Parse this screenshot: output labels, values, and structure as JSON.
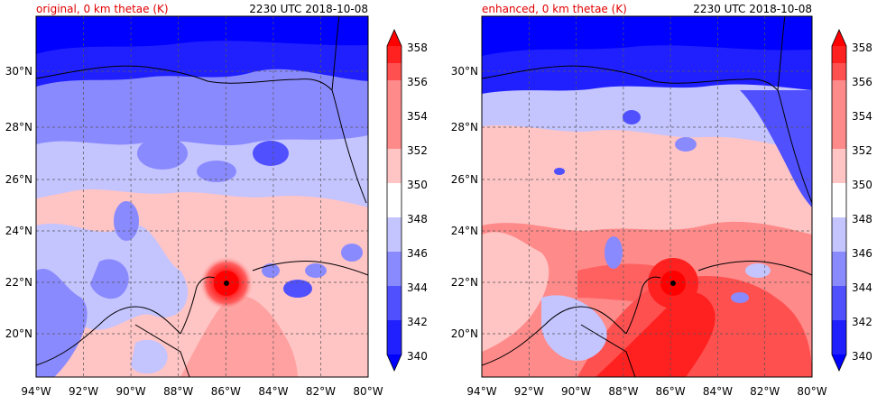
{
  "panels": [
    {
      "id": "original",
      "title_left": "original, 0 km thetae (K)",
      "title_right": "2230 UTC 2018-10-08",
      "x_ticks": [
        "94°W",
        "92°W",
        "90°W",
        "88°W",
        "86°W",
        "84°W",
        "82°W",
        "80°W"
      ],
      "y_ticks": [
        "20°N",
        "22°N",
        "24°N",
        "26°N",
        "28°N",
        "30°N"
      ],
      "colorbar_ticks": [
        "340",
        "342",
        "344",
        "346",
        "348",
        "350",
        "352",
        "354",
        "356",
        "358"
      ],
      "storm_center": {
        "lon": -86.0,
        "lat": 22.0
      }
    },
    {
      "id": "enhanced",
      "title_left": "enhanced, 0 km thetae (K)",
      "title_right": "2230 UTC 2018-10-08",
      "x_ticks": [
        "94°W",
        "92°W",
        "90°W",
        "88°W",
        "86°W",
        "84°W",
        "82°W",
        "80°W"
      ],
      "y_ticks": [
        "20°N",
        "22°N",
        "24°N",
        "26°N",
        "28°N",
        "30°N"
      ],
      "colorbar_ticks": [
        "340",
        "342",
        "344",
        "346",
        "348",
        "350",
        "352",
        "354",
        "356",
        "358"
      ],
      "storm_center": {
        "lon": -86.0,
        "lat": 22.0
      }
    }
  ],
  "map_extent": {
    "lon_min": -94,
    "lon_max": -80,
    "lat_min": 18.2,
    "lat_max": 32.0
  },
  "colors": {
    "levels": [
      "#0000ff",
      "#2020ff",
      "#5050ff",
      "#8a8aff",
      "#c4c4ff",
      "#ffffff",
      "#ffc4c4",
      "#ff8a8a",
      "#ff5050",
      "#ff2020",
      "#ff0000"
    ],
    "title_accent": "#e00000",
    "storm_eye": "#000000"
  }
}
